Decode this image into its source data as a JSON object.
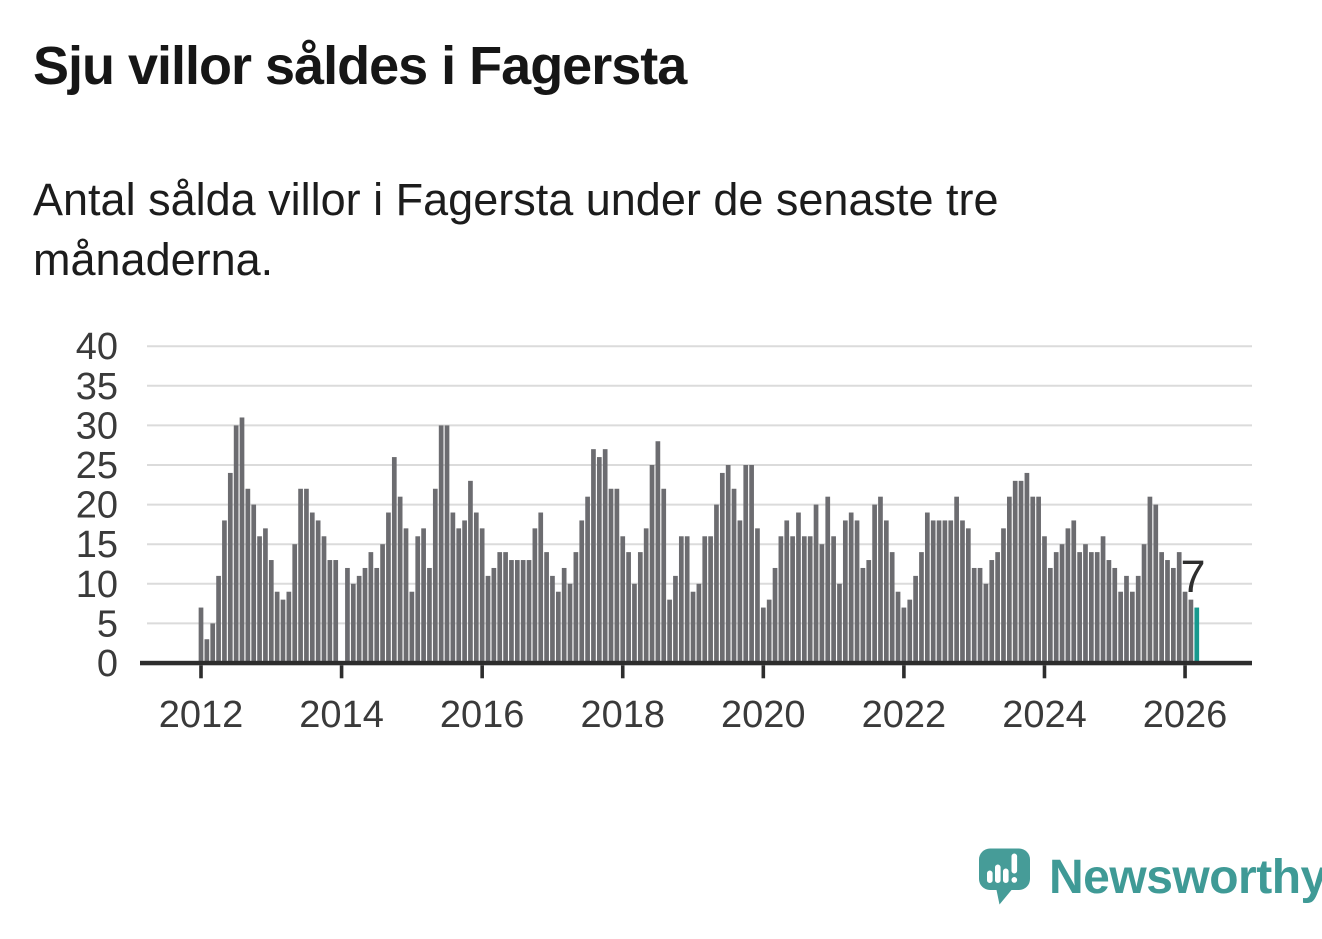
{
  "title": "Sju villor såldes i Fagersta",
  "subtitle": {
    "full": "Antal sålda villor i Fagersta under de senaste tre månaderna.",
    "line1": "Antal sålda villor i Fagersta under de senaste tre",
    "line2": "månaderna."
  },
  "chart_data": {
    "type": "bar",
    "title": "Sju villor såldes i Fagersta",
    "subtitle": "Antal sålda villor i Fagersta under de senaste tre månaderna.",
    "x_start": "2012-01",
    "x_end": "2026-03",
    "frequency": "monthly",
    "xlabel": "",
    "ylabel": "",
    "ylim": [
      0,
      40
    ],
    "grid": "horizontal",
    "legend": "none",
    "y_ticks": [
      0,
      5,
      10,
      15,
      20,
      25,
      30,
      35,
      40
    ],
    "x_tick_labels": [
      "2012",
      "2014",
      "2016",
      "2018",
      "2020",
      "2022",
      "2024",
      "2026"
    ],
    "bar_color": "#6c6c70",
    "highlight_color": "#17998e",
    "highlight_index": 170,
    "highlight_label": "7",
    "values": [
      7,
      3,
      5,
      11,
      18,
      24,
      30,
      31,
      22,
      20,
      16,
      17,
      13,
      9,
      8,
      9,
      15,
      22,
      22,
      19,
      18,
      16,
      13,
      13,
      0,
      12,
      10,
      11,
      12,
      14,
      12,
      15,
      19,
      26,
      21,
      17,
      9,
      16,
      17,
      12,
      22,
      30,
      30,
      19,
      17,
      18,
      23,
      19,
      17,
      11,
      12,
      14,
      14,
      13,
      13,
      13,
      13,
      17,
      19,
      14,
      11,
      9,
      12,
      10,
      14,
      18,
      21,
      27,
      26,
      27,
      22,
      22,
      16,
      14,
      10,
      14,
      17,
      25,
      28,
      22,
      8,
      11,
      16,
      16,
      9,
      10,
      16,
      16,
      20,
      24,
      25,
      22,
      18,
      25,
      25,
      17,
      7,
      8,
      12,
      16,
      18,
      16,
      19,
      16,
      16,
      20,
      15,
      21,
      16,
      10,
      18,
      19,
      18,
      12,
      13,
      20,
      21,
      18,
      14,
      9,
      7,
      8,
      11,
      14,
      19,
      18,
      18,
      18,
      18,
      21,
      18,
      17,
      12,
      12,
      10,
      13,
      14,
      17,
      21,
      23,
      23,
      24,
      21,
      21,
      16,
      12,
      14,
      15,
      17,
      18,
      14,
      15,
      14,
      14,
      16,
      13,
      12,
      9,
      11,
      9,
      11,
      15,
      21,
      20,
      14,
      13,
      12,
      14,
      9,
      8,
      7
    ]
  },
  "annotation": {
    "last_value_label": "7"
  },
  "branding": {
    "name": "Newsworthy",
    "logo_icon": "speech-bubble-bar-chart-icon"
  },
  "colors": {
    "background": "#ffffff",
    "title": "#161616",
    "subtitle": "#1c1c1c",
    "bar": "#6c6c70",
    "highlight": "#17998e",
    "grid": "#dbdbdb",
    "axis": "#2d2d2d",
    "tick_label": "#3a3a3a",
    "annotation": "#2e2e2e",
    "brand": "#3f9a96",
    "brand_icon": "#469c98"
  }
}
